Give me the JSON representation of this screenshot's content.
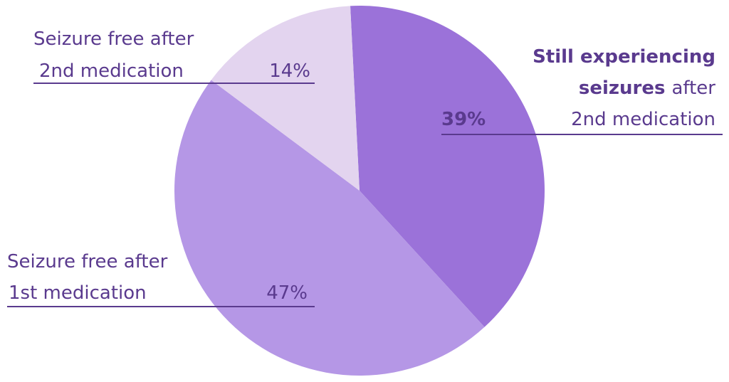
{
  "chart_data": {
    "type": "pie",
    "values": [
      39,
      47,
      14
    ],
    "value_labels": [
      "39%",
      "47%",
      "14%"
    ],
    "value_label_bold": [
      true,
      false,
      false
    ],
    "colors": [
      "#9b72d9",
      "#b597e6",
      "#e3d4ef"
    ],
    "labels": [
      [
        [
          {
            "text": "Still experiencing",
            "bold": true
          }
        ],
        [
          {
            "text": "seizures",
            "bold": true
          },
          {
            "text": "after",
            "bold": false
          }
        ],
        [
          {
            "text": "2nd medication",
            "bold": false
          }
        ]
      ],
      [
        [
          {
            "text": "Seizure free after",
            "bold": false
          }
        ],
        [
          {
            "text": "1st medication",
            "bold": false
          }
        ]
      ],
      [
        [
          {
            "text": "Seizure free after",
            "bold": false
          }
        ],
        [
          {
            "text": "2nd medication",
            "bold": false
          }
        ]
      ]
    ]
  }
}
